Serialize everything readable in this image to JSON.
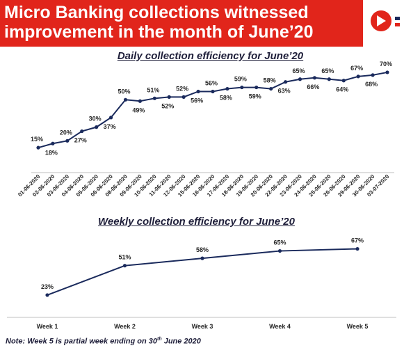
{
  "header": {
    "title_line1": "Micro Banking collections witnessed",
    "title_line2": "improvement in the month of June’20",
    "brand_color": "#e1251b"
  },
  "note": {
    "prefix": "Note: Week 5 is partial week ending on 30",
    "sup": "th",
    "suffix": " June 2020"
  },
  "chart_data": [
    {
      "type": "line",
      "title": "Daily collection efficiency for June’20",
      "x": [
        "01-06-2020",
        "02-06-2020",
        "03-06-2020",
        "04-06-2020",
        "05-06-2020",
        "06-06-2020",
        "08-06-2020",
        "09-06-2020",
        "10-06-2020",
        "11-06-2020",
        "12-06-2020",
        "15-06-2020",
        "16-06-2020",
        "17-06-2020",
        "18-06-2020",
        "19-06-2020",
        "20-06-2020",
        "22-06-2020",
        "23-06-2020",
        "24-06-2020",
        "25-06-2020",
        "26-06-2020",
        "29-06-2020",
        "30-06-2020",
        "03-07-2020"
      ],
      "values": [
        15,
        18,
        20,
        27,
        30,
        37,
        50,
        49,
        51,
        52,
        52,
        56,
        56,
        58,
        59,
        59,
        58,
        63,
        65,
        66,
        65,
        64,
        67,
        68,
        70
      ],
      "labels": [
        "15%",
        "18%",
        "20%",
        "27%",
        "30%",
        "37%",
        "50%",
        "49%",
        "51%",
        "52%",
        "52%",
        "56%",
        "56%",
        "58%",
        "59%",
        "59%",
        "58%",
        "63%",
        "65%",
        "66%",
        "65%",
        "64%",
        "67%",
        "68%",
        "70%"
      ],
      "label_position": [
        "above",
        "below",
        "above",
        "below",
        "above",
        "below",
        "above",
        "below",
        "above",
        "below",
        "above",
        "below",
        "above",
        "below",
        "above",
        "below",
        "above",
        "below",
        "above",
        "below",
        "above",
        "below",
        "above",
        "below",
        "above"
      ],
      "ylim": [
        10,
        72
      ],
      "line_color": "#1a2a5c",
      "grid": false
    },
    {
      "type": "line",
      "title": "Weekly collection efficiency for June’20",
      "x": [
        "Week 1",
        "Week 2",
        "Week 3",
        "Week 4",
        "Week 5"
      ],
      "values": [
        23,
        51,
        58,
        65,
        67
      ],
      "labels": [
        "23%",
        "51%",
        "58%",
        "65%",
        "67%"
      ],
      "ylim": [
        15,
        72
      ],
      "line_color": "#1a2a5c",
      "grid": false
    }
  ]
}
